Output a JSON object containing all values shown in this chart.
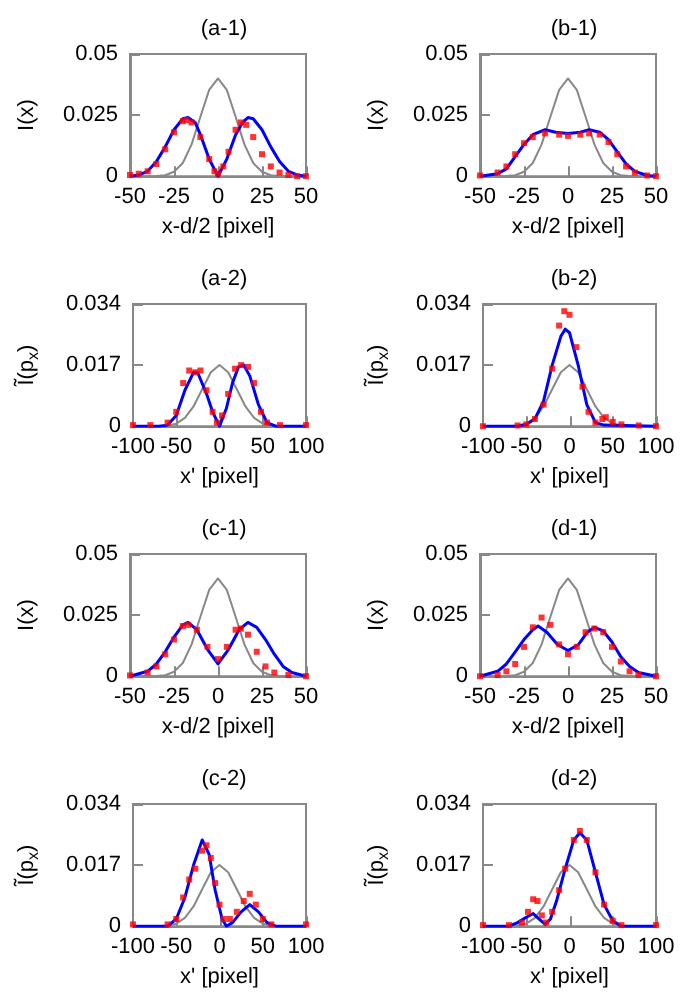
{
  "chart_data": [
    {
      "type": "line",
      "title": "(a-1)",
      "xlabel": "x-d/2 [pixel]",
      "ylabel": "I(x)",
      "xlim": [
        -50,
        50
      ],
      "xticks": [
        -50,
        -25,
        0,
        25,
        50
      ],
      "ylim": [
        0,
        0.05
      ],
      "yticks": [
        0,
        0.025,
        0.05
      ],
      "series": [
        {
          "color": "#888888",
          "x": [
            -50,
            -35,
            -30,
            -25,
            -20,
            -15,
            -10,
            -5,
            0,
            5,
            10,
            15,
            20,
            25,
            30,
            35,
            50
          ],
          "values": [
            0,
            0.0001,
            0.0004,
            0.0018,
            0.0054,
            0.013,
            0.0243,
            0.0353,
            0.04,
            0.0353,
            0.0243,
            0.013,
            0.0054,
            0.0018,
            0.0004,
            0.0001,
            0
          ]
        },
        {
          "color": "#0000ff",
          "x": [
            -50,
            -45,
            -40,
            -35,
            -30,
            -25,
            -20,
            -17,
            -13,
            -10,
            -5,
            0,
            5,
            10,
            14,
            17,
            20,
            25,
            30,
            35,
            40,
            45,
            50
          ],
          "values": [
            0,
            0.0005,
            0.002,
            0.006,
            0.012,
            0.019,
            0.0235,
            0.024,
            0.022,
            0.017,
            0.007,
            0,
            0.007,
            0.017,
            0.022,
            0.024,
            0.0235,
            0.019,
            0.012,
            0.006,
            0.002,
            0.0005,
            0
          ]
        },
        {
          "type": "scatter",
          "color": "#ff0000",
          "x": [
            -50,
            -45,
            -40,
            -35,
            -30,
            -25,
            -20,
            -18,
            -15,
            -10,
            -5,
            -2,
            0,
            3,
            6,
            10,
            13,
            16,
            20,
            25,
            30,
            35,
            40,
            45,
            50
          ],
          "values": [
            0.0005,
            0.001,
            0.002,
            0.005,
            0.011,
            0.018,
            0.0225,
            0.023,
            0.022,
            0.016,
            0.007,
            0.002,
            0.001,
            0.004,
            0.01,
            0.019,
            0.022,
            0.021,
            0.016,
            0.009,
            0.004,
            0.0015,
            0.0005,
            0,
            0
          ]
        }
      ]
    },
    {
      "type": "line",
      "title": "(b-1)",
      "xlabel": "x-d/2 [pixel]",
      "ylabel": "I(x)",
      "xlim": [
        -50,
        50
      ],
      "xticks": [
        -50,
        -25,
        0,
        25,
        50
      ],
      "ylim": [
        0,
        0.05
      ],
      "yticks": [
        0,
        0.025,
        0.05
      ],
      "series": [
        {
          "color": "#888888",
          "x": [
            -50,
            -35,
            -30,
            -25,
            -20,
            -15,
            -10,
            -5,
            0,
            5,
            10,
            15,
            20,
            25,
            30,
            35,
            50
          ],
          "values": [
            0,
            0.0001,
            0.0004,
            0.0018,
            0.0054,
            0.013,
            0.0243,
            0.0353,
            0.04,
            0.0353,
            0.0243,
            0.013,
            0.0054,
            0.0018,
            0.0004,
            0.0001,
            0
          ]
        },
        {
          "color": "#0000ff",
          "x": [
            -50,
            -40,
            -35,
            -30,
            -25,
            -20,
            -13,
            -7,
            0,
            7,
            12,
            18,
            23,
            28,
            33,
            38,
            45,
            50
          ],
          "values": [
            0,
            0.001,
            0.003,
            0.008,
            0.013,
            0.017,
            0.019,
            0.018,
            0.0175,
            0.018,
            0.019,
            0.018,
            0.015,
            0.01,
            0.005,
            0.002,
            0.0003,
            0
          ]
        },
        {
          "type": "scatter",
          "color": "#ff0000",
          "x": [
            -50,
            -40,
            -35,
            -30,
            -25,
            -20,
            -13,
            -5,
            0,
            7,
            12,
            18,
            23,
            28,
            33,
            38,
            45,
            50
          ],
          "values": [
            0.0003,
            0.0015,
            0.004,
            0.009,
            0.0135,
            0.016,
            0.0175,
            0.017,
            0.0165,
            0.017,
            0.0175,
            0.017,
            0.014,
            0.009,
            0.004,
            0.0015,
            0.0003,
            0
          ]
        }
      ]
    },
    {
      "type": "line",
      "title": "(a-2)",
      "xlabel": "x' [pixel]",
      "ylabel": "Ĩ(p$_{x}$)",
      "xlim": [
        -100,
        100
      ],
      "xticks": [
        -100,
        -50,
        0,
        50,
        100
      ],
      "ylim": [
        0,
        0.034
      ],
      "yticks": [
        0,
        0.017,
        0.034
      ],
      "series": [
        {
          "color": "#888888",
          "x": [
            -100,
            -70,
            -60,
            -50,
            -40,
            -30,
            -20,
            -10,
            0,
            10,
            20,
            30,
            40,
            50,
            60,
            70,
            100
          ],
          "values": [
            0,
            0,
            0.0002,
            0.0007,
            0.0023,
            0.0055,
            0.0103,
            0.015,
            0.017,
            0.015,
            0.0103,
            0.0055,
            0.0023,
            0.0007,
            0.0002,
            0,
            0
          ]
        },
        {
          "color": "#0000ff",
          "x": [
            -100,
            -70,
            -60,
            -50,
            -40,
            -30,
            -25,
            -15,
            -8,
            0,
            8,
            15,
            22,
            28,
            35,
            45,
            55,
            65,
            100
          ],
          "values": [
            0,
            0,
            0.0003,
            0.003,
            0.01,
            0.015,
            0.0148,
            0.009,
            0.004,
            0,
            0.005,
            0.012,
            0.0165,
            0.017,
            0.014,
            0.006,
            0.001,
            0,
            0
          ]
        },
        {
          "type": "scatter",
          "color": "#ff0000",
          "x": [
            -100,
            -80,
            -60,
            -50,
            -42,
            -35,
            -28,
            -22,
            -15,
            -8,
            -3,
            3,
            10,
            18,
            25,
            33,
            40,
            48,
            55,
            70,
            100
          ],
          "values": [
            0.0003,
            0.0003,
            0.001,
            0.004,
            0.012,
            0.0155,
            0.015,
            0.0155,
            0.01,
            0.004,
            0.001,
            0.003,
            0.009,
            0.016,
            0.017,
            0.0165,
            0.012,
            0.004,
            0.001,
            0.0003,
            0.0003
          ]
        }
      ]
    },
    {
      "type": "line",
      "title": "(b-2)",
      "xlabel": "x' [pixel]",
      "ylabel": "Ĩ(p$_{x}$)",
      "xlim": [
        -100,
        100
      ],
      "xticks": [
        -100,
        -50,
        0,
        50,
        100
      ],
      "ylim": [
        0,
        0.034
      ],
      "yticks": [
        0,
        0.017,
        0.034
      ],
      "series": [
        {
          "color": "#888888",
          "x": [
            -100,
            -70,
            -60,
            -50,
            -40,
            -30,
            -20,
            -10,
            0,
            10,
            20,
            30,
            40,
            50,
            60,
            70,
            100
          ],
          "values": [
            0,
            0,
            0.0002,
            0.0007,
            0.0023,
            0.0055,
            0.0103,
            0.015,
            0.017,
            0.015,
            0.0103,
            0.0055,
            0.0023,
            0.0007,
            0.0002,
            0,
            0
          ]
        },
        {
          "color": "#0000ff",
          "x": [
            -100,
            -60,
            -50,
            -40,
            -30,
            -20,
            -10,
            -5,
            0,
            10,
            20,
            30,
            40,
            100
          ],
          "values": [
            0,
            0,
            0.0005,
            0.002,
            0.007,
            0.017,
            0.025,
            0.027,
            0.026,
            0.017,
            0.006,
            0.001,
            0.0003,
            0
          ]
        },
        {
          "type": "scatter",
          "color": "#ff0000",
          "x": [
            -100,
            -60,
            -50,
            -40,
            -30,
            -20,
            -12,
            -6,
            0,
            8,
            15,
            22,
            30,
            38,
            42,
            50,
            60,
            80,
            100
          ],
          "values": [
            0,
            0.0002,
            0.0005,
            0.002,
            0.006,
            0.016,
            0.028,
            0.032,
            0.031,
            0.022,
            0.011,
            0.004,
            0.001,
            0.002,
            0.0025,
            0.0012,
            0.0005,
            0.0002,
            0
          ]
        }
      ]
    },
    {
      "type": "line",
      "title": "(c-1)",
      "xlabel": "x-d/2 [pixel]",
      "ylabel": "I(x)",
      "xlim": [
        -50,
        50
      ],
      "xticks": [
        -50,
        -25,
        0,
        25,
        50
      ],
      "ylim": [
        0,
        0.05
      ],
      "yticks": [
        0,
        0.025,
        0.05
      ],
      "series": [
        {
          "color": "#888888",
          "x": [
            -50,
            -35,
            -30,
            -25,
            -20,
            -15,
            -10,
            -5,
            0,
            5,
            10,
            15,
            20,
            25,
            30,
            35,
            50
          ],
          "values": [
            0,
            0.0001,
            0.0004,
            0.0018,
            0.0054,
            0.013,
            0.0243,
            0.0353,
            0.04,
            0.0353,
            0.0243,
            0.013,
            0.0054,
            0.0018,
            0.0004,
            0.0001,
            0
          ]
        },
        {
          "color": "#0000ff",
          "x": [
            -50,
            -40,
            -35,
            -30,
            -25,
            -20,
            -17,
            -12,
            -6,
            0,
            6,
            12,
            17,
            22,
            27,
            32,
            37,
            42,
            50
          ],
          "values": [
            0,
            0.002,
            0.005,
            0.01,
            0.016,
            0.021,
            0.022,
            0.019,
            0.011,
            0.005,
            0.011,
            0.019,
            0.022,
            0.02,
            0.015,
            0.009,
            0.004,
            0.0015,
            0
          ]
        },
        {
          "type": "scatter",
          "color": "#ff0000",
          "x": [
            -50,
            -40,
            -35,
            -30,
            -25,
            -20,
            -17,
            -12,
            -6,
            0,
            5,
            10,
            13,
            17,
            22,
            27,
            32,
            40,
            50
          ],
          "values": [
            0.0003,
            0.0015,
            0.004,
            0.009,
            0.015,
            0.0205,
            0.021,
            0.019,
            0.012,
            0.007,
            0.012,
            0.019,
            0.0195,
            0.017,
            0.01,
            0.004,
            0.0015,
            0.0005,
            0
          ]
        }
      ]
    },
    {
      "type": "line",
      "title": "(d-1)",
      "xlabel": "x-d/2 [pixel]",
      "ylabel": "I(x)",
      "xlim": [
        -50,
        50
      ],
      "xticks": [
        -50,
        -25,
        0,
        25,
        50
      ],
      "ylim": [
        0,
        0.05
      ],
      "yticks": [
        0,
        0.025,
        0.05
      ],
      "series": [
        {
          "color": "#888888",
          "x": [
            -50,
            -35,
            -30,
            -25,
            -20,
            -15,
            -10,
            -5,
            0,
            5,
            10,
            15,
            20,
            25,
            30,
            35,
            50
          ],
          "values": [
            0,
            0.0001,
            0.0004,
            0.0018,
            0.0054,
            0.013,
            0.0243,
            0.0353,
            0.04,
            0.0353,
            0.0243,
            0.013,
            0.0054,
            0.0018,
            0.0004,
            0.0001,
            0
          ]
        },
        {
          "color": "#0000ff",
          "x": [
            -50,
            -40,
            -35,
            -30,
            -25,
            -20,
            -17,
            -12,
            -6,
            0,
            6,
            11,
            15,
            20,
            25,
            30,
            35,
            40,
            50
          ],
          "values": [
            0,
            0.002,
            0.005,
            0.01,
            0.015,
            0.019,
            0.0205,
            0.018,
            0.013,
            0.0105,
            0.013,
            0.018,
            0.02,
            0.0185,
            0.014,
            0.008,
            0.004,
            0.0015,
            0
          ]
        },
        {
          "type": "scatter",
          "color": "#ff0000",
          "x": [
            -50,
            -40,
            -35,
            -30,
            -25,
            -20,
            -15,
            -10,
            -5,
            0,
            5,
            10,
            15,
            20,
            25,
            30,
            35,
            40,
            50
          ],
          "values": [
            0,
            0.0005,
            0.002,
            0.005,
            0.012,
            0.02,
            0.024,
            0.021,
            0.013,
            0.009,
            0.012,
            0.018,
            0.0195,
            0.018,
            0.012,
            0.006,
            0.002,
            0.0005,
            0
          ]
        }
      ]
    },
    {
      "type": "line",
      "title": "(c-2)",
      "xlabel": "x' [pixel]",
      "ylabel": "Ĩ(p$_{x}$)",
      "xlim": [
        -100,
        100
      ],
      "xticks": [
        -100,
        -50,
        0,
        50,
        100
      ],
      "ylim": [
        0,
        0.034
      ],
      "yticks": [
        0,
        0.017,
        0.034
      ],
      "series": [
        {
          "color": "#888888",
          "x": [
            -100,
            -70,
            -60,
            -50,
            -40,
            -30,
            -20,
            -10,
            0,
            10,
            20,
            30,
            40,
            50,
            60,
            70,
            100
          ],
          "values": [
            0,
            0,
            0.0002,
            0.0007,
            0.0023,
            0.0055,
            0.0103,
            0.015,
            0.017,
            0.015,
            0.0103,
            0.0055,
            0.0023,
            0.0007,
            0.0002,
            0,
            0
          ]
        },
        {
          "color": "#0000ff",
          "x": [
            -100,
            -60,
            -50,
            -40,
            -30,
            -20,
            -12,
            -5,
            3,
            8,
            15,
            25,
            35,
            45,
            55,
            65,
            100
          ],
          "values": [
            0,
            0,
            0.002,
            0.008,
            0.017,
            0.024,
            0.02,
            0.01,
            0.002,
            0,
            0.001,
            0.004,
            0.006,
            0.004,
            0.001,
            0,
            0
          ]
        },
        {
          "type": "scatter",
          "color": "#ff0000",
          "x": [
            -100,
            -60,
            -50,
            -42,
            -35,
            -28,
            -20,
            -15,
            -10,
            -5,
            0,
            5,
            12,
            20,
            28,
            35,
            42,
            50,
            60,
            100
          ],
          "values": [
            0.0005,
            0.0005,
            0.002,
            0.008,
            0.013,
            0.016,
            0.021,
            0.0225,
            0.019,
            0.012,
            0.006,
            0.002,
            0.002,
            0.004,
            0.007,
            0.009,
            0.006,
            0.002,
            0.0005,
            0.0005
          ]
        }
      ]
    },
    {
      "type": "line",
      "title": "(d-2)",
      "xlabel": "x' [pixel]",
      "ylabel": "Ĩ(p$_{x}$)",
      "xlim": [
        -100,
        100
      ],
      "xticks": [
        -100,
        -50,
        0,
        50,
        100
      ],
      "ylim": [
        0,
        0.034
      ],
      "yticks": [
        0,
        0.017,
        0.034
      ],
      "series": [
        {
          "color": "#888888",
          "x": [
            -100,
            -70,
            -60,
            -50,
            -40,
            -30,
            -20,
            -10,
            0,
            10,
            20,
            30,
            40,
            50,
            60,
            70,
            100
          ],
          "values": [
            0,
            0,
            0.0002,
            0.0007,
            0.0023,
            0.0055,
            0.0103,
            0.015,
            0.017,
            0.015,
            0.0103,
            0.0055,
            0.0023,
            0.0007,
            0.0002,
            0,
            0
          ]
        },
        {
          "color": "#0000ff",
          "x": [
            -100,
            -70,
            -60,
            -50,
            -42,
            -35,
            -28,
            -22,
            -15,
            -5,
            5,
            12,
            20,
            30,
            40,
            50,
            60,
            100
          ],
          "values": [
            0,
            0,
            0.001,
            0.0025,
            0.0035,
            0.002,
            0.0005,
            0.002,
            0.007,
            0.016,
            0.024,
            0.026,
            0.024,
            0.015,
            0.006,
            0.0015,
            0,
            0
          ]
        },
        {
          "type": "scatter",
          "color": "#ff0000",
          "x": [
            -100,
            -70,
            -55,
            -48,
            -42,
            -37,
            -32,
            -27,
            -20,
            -12,
            -5,
            5,
            12,
            20,
            30,
            40,
            50,
            60,
            100
          ],
          "values": [
            0.0003,
            0.0003,
            0.001,
            0.004,
            0.0075,
            0.007,
            0.003,
            0.001,
            0.004,
            0.01,
            0.016,
            0.024,
            0.0265,
            0.024,
            0.015,
            0.006,
            0.0015,
            0.0003,
            0.0003
          ]
        }
      ]
    }
  ]
}
